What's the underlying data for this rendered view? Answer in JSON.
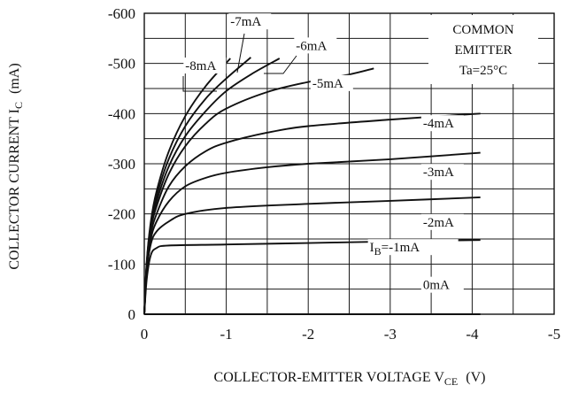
{
  "chart_data": {
    "type": "line",
    "xlabel": {
      "main": "COLLECTOR-EMITTER VOLTAGE V",
      "sub": "CE",
      "unit": "(V)"
    },
    "ylabel": {
      "main": "COLLECTOR CURRENT I",
      "sub": "C",
      "unit": "(mA)"
    },
    "xlim": [
      0,
      -5
    ],
    "ylim": [
      0,
      -600
    ],
    "x_ticks": [
      0,
      -1,
      -2,
      -3,
      -4,
      -5
    ],
    "y_ticks": [
      0,
      -100,
      -200,
      -300,
      -400,
      -500,
      -600
    ],
    "x_tick_labels": [
      "0",
      "-1",
      "-2",
      "-3",
      "-4",
      "-5"
    ],
    "y_tick_labels": [
      "0",
      "-100",
      "-200",
      "-300",
      "-400",
      "-500",
      "-600"
    ],
    "grid": true,
    "annotation": [
      "COMMON",
      "EMITTER",
      "Ta=25°C"
    ],
    "series": [
      {
        "name": "-1mA",
        "points": [
          [
            0,
            0
          ],
          [
            -0.03,
            -70
          ],
          [
            -0.08,
            -118
          ],
          [
            -0.15,
            -132
          ],
          [
            -0.3,
            -137
          ],
          [
            -1,
            -139
          ],
          [
            -2,
            -142
          ],
          [
            -3,
            -145
          ],
          [
            -4.1,
            -148
          ]
        ]
      },
      {
        "name": "-2mA",
        "points": [
          [
            0,
            0
          ],
          [
            -0.03,
            -85
          ],
          [
            -0.08,
            -140
          ],
          [
            -0.15,
            -165
          ],
          [
            -0.3,
            -185
          ],
          [
            -0.5,
            -200
          ],
          [
            -1,
            -212
          ],
          [
            -2,
            -220
          ],
          [
            -3,
            -226
          ],
          [
            -4.1,
            -233
          ]
        ]
      },
      {
        "name": "-3mA",
        "points": [
          [
            0,
            0
          ],
          [
            -0.03,
            -90
          ],
          [
            -0.08,
            -150
          ],
          [
            -0.15,
            -185
          ],
          [
            -0.3,
            -225
          ],
          [
            -0.5,
            -255
          ],
          [
            -0.75,
            -272
          ],
          [
            -1,
            -282
          ],
          [
            -1.5,
            -293
          ],
          [
            -2,
            -300
          ],
          [
            -3,
            -309
          ],
          [
            -4.1,
            -322
          ]
        ]
      },
      {
        "name": "-4mA",
        "points": [
          [
            0,
            0
          ],
          [
            -0.03,
            -95
          ],
          [
            -0.08,
            -160
          ],
          [
            -0.15,
            -200
          ],
          [
            -0.3,
            -255
          ],
          [
            -0.5,
            -295
          ],
          [
            -0.75,
            -325
          ],
          [
            -1,
            -342
          ],
          [
            -1.5,
            -362
          ],
          [
            -2,
            -375
          ],
          [
            -3,
            -388
          ],
          [
            -4.1,
            -400
          ]
        ]
      },
      {
        "name": "-5mA",
        "points": [
          [
            0,
            0
          ],
          [
            -0.03,
            -100
          ],
          [
            -0.08,
            -170
          ],
          [
            -0.15,
            -215
          ],
          [
            -0.3,
            -280
          ],
          [
            -0.5,
            -335
          ],
          [
            -0.75,
            -380
          ],
          [
            -1,
            -410
          ],
          [
            -1.5,
            -443
          ],
          [
            -2,
            -463
          ],
          [
            -2.5,
            -478
          ],
          [
            -2.8,
            -490
          ]
        ]
      },
      {
        "name": "-6mA",
        "points": [
          [
            0,
            0
          ],
          [
            -0.03,
            -100
          ],
          [
            -0.08,
            -175
          ],
          [
            -0.15,
            -225
          ],
          [
            -0.3,
            -295
          ],
          [
            -0.5,
            -355
          ],
          [
            -0.75,
            -405
          ],
          [
            -1,
            -445
          ],
          [
            -1.3,
            -478
          ],
          [
            -1.65,
            -510
          ]
        ]
      },
      {
        "name": "-7mA",
        "points": [
          [
            0,
            0
          ],
          [
            -0.03,
            -102
          ],
          [
            -0.08,
            -180
          ],
          [
            -0.15,
            -235
          ],
          [
            -0.3,
            -310
          ],
          [
            -0.5,
            -375
          ],
          [
            -0.75,
            -430
          ],
          [
            -1,
            -470
          ],
          [
            -1.3,
            -512
          ]
        ]
      },
      {
        "name": "-8mA",
        "points": [
          [
            0,
            0
          ],
          [
            -0.03,
            -105
          ],
          [
            -0.08,
            -185
          ],
          [
            -0.15,
            -245
          ],
          [
            -0.3,
            -325
          ],
          [
            -0.5,
            -395
          ],
          [
            -0.75,
            -455
          ],
          [
            -1.05,
            -510
          ]
        ]
      },
      {
        "name": "0mA",
        "points": [
          [
            0,
            0
          ],
          [
            -4.1,
            0
          ]
        ]
      }
    ],
    "curve_labels": [
      {
        "text": "-7mA",
        "at": [
          -1.05,
          -575
        ]
      },
      {
        "text": "-6mA",
        "at": [
          -1.85,
          -527
        ]
      },
      {
        "text": "-8mA",
        "at": [
          -0.5,
          -487
        ]
      },
      {
        "text": "-5mA",
        "at": [
          -2.05,
          -452
        ]
      },
      {
        "text": "-4mA",
        "at": [
          -3.4,
          -372
        ]
      },
      {
        "text": "-3mA",
        "at": [
          -3.4,
          -275
        ]
      },
      {
        "text": "-2mA",
        "at": [
          -3.4,
          -175
        ]
      },
      {
        "text": "-1mA",
        "prefix": "I",
        "sub": "B",
        "full": "IB=-1mA",
        "at": [
          -2.75,
          -125
        ]
      },
      {
        "text": "0mA",
        "at": [
          -3.4,
          -50
        ]
      }
    ]
  }
}
